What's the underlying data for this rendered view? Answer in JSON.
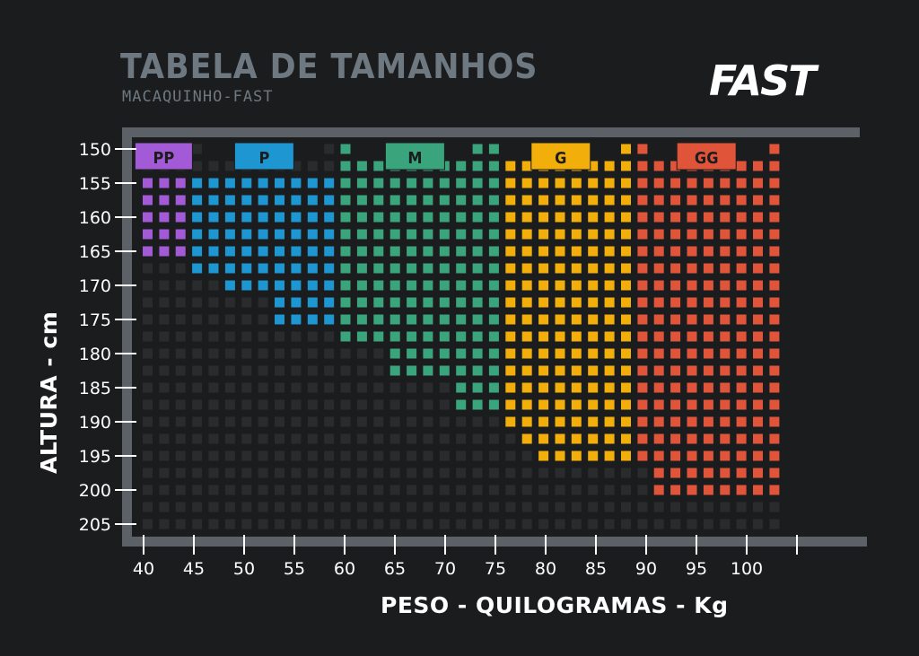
{
  "header": {
    "title": "TABELA DE TAMANHOS",
    "subtitle": "MACAQUINHO-FAST",
    "brand": "FAST"
  },
  "chart_data": {
    "type": "heatmap",
    "title": "TABELA DE TAMANHOS",
    "subtitle": "MACAQUINHO-FAST",
    "xlabel": "PESO - QUILOGRAMAS - Kg",
    "ylabel": "ALTURA  - cm",
    "x_ticks": [
      40,
      45,
      50,
      55,
      60,
      65,
      70,
      75,
      80,
      85,
      90,
      95,
      100
    ],
    "y_ticks": [
      150,
      155,
      160,
      165,
      170,
      175,
      180,
      185,
      190,
      195,
      200,
      205
    ],
    "xlim": [
      40,
      104
    ],
    "ylim": [
      150,
      205
    ],
    "grid_step": {
      "x": 1.667,
      "y": 2.5
    },
    "empty_color": "#2a2b2d",
    "sizes": [
      {
        "label": "PP",
        "color": "#a35ad6",
        "weight_range": [
          40,
          44
        ],
        "height_by_weight": [
          [
            40,
            44,
            155,
            165
          ]
        ]
      },
      {
        "label": "P",
        "color": "#1d96d1",
        "weight_range": [
          45,
          59
        ],
        "height_by_weight": [
          [
            45,
            46,
            155,
            167.5
          ],
          [
            47,
            52,
            155,
            170
          ],
          [
            53,
            59,
            155,
            175
          ]
        ]
      },
      {
        "label": "M",
        "color": "#3aa57c",
        "weight_range": [
          60,
          74
        ],
        "height_by_weight": [
          [
            60,
            64,
            150,
            177.5
          ],
          [
            65,
            69,
            150,
            182.5
          ],
          [
            70,
            72,
            150,
            187.5
          ],
          [
            73,
            74,
            150,
            187.5
          ]
        ]
      },
      {
        "label": "G",
        "color": "#f2ae0a",
        "weight_range": [
          75,
          88
        ],
        "height_by_weight": [
          [
            75,
            76,
            150,
            190
          ],
          [
            77,
            78,
            150,
            192.5
          ],
          [
            79,
            88,
            150,
            195
          ]
        ]
      },
      {
        "label": "GG",
        "color": "#e0553a",
        "weight_range": [
          89,
          103
        ],
        "height_by_weight": [
          [
            89,
            89,
            150,
            195
          ],
          [
            90,
            103,
            150,
            200
          ]
        ]
      }
    ]
  },
  "colors": {
    "background": "#1b1c1e",
    "frame": "#5b6166",
    "title": "#6e7880",
    "empty_cell": "#2a2b2d"
  }
}
